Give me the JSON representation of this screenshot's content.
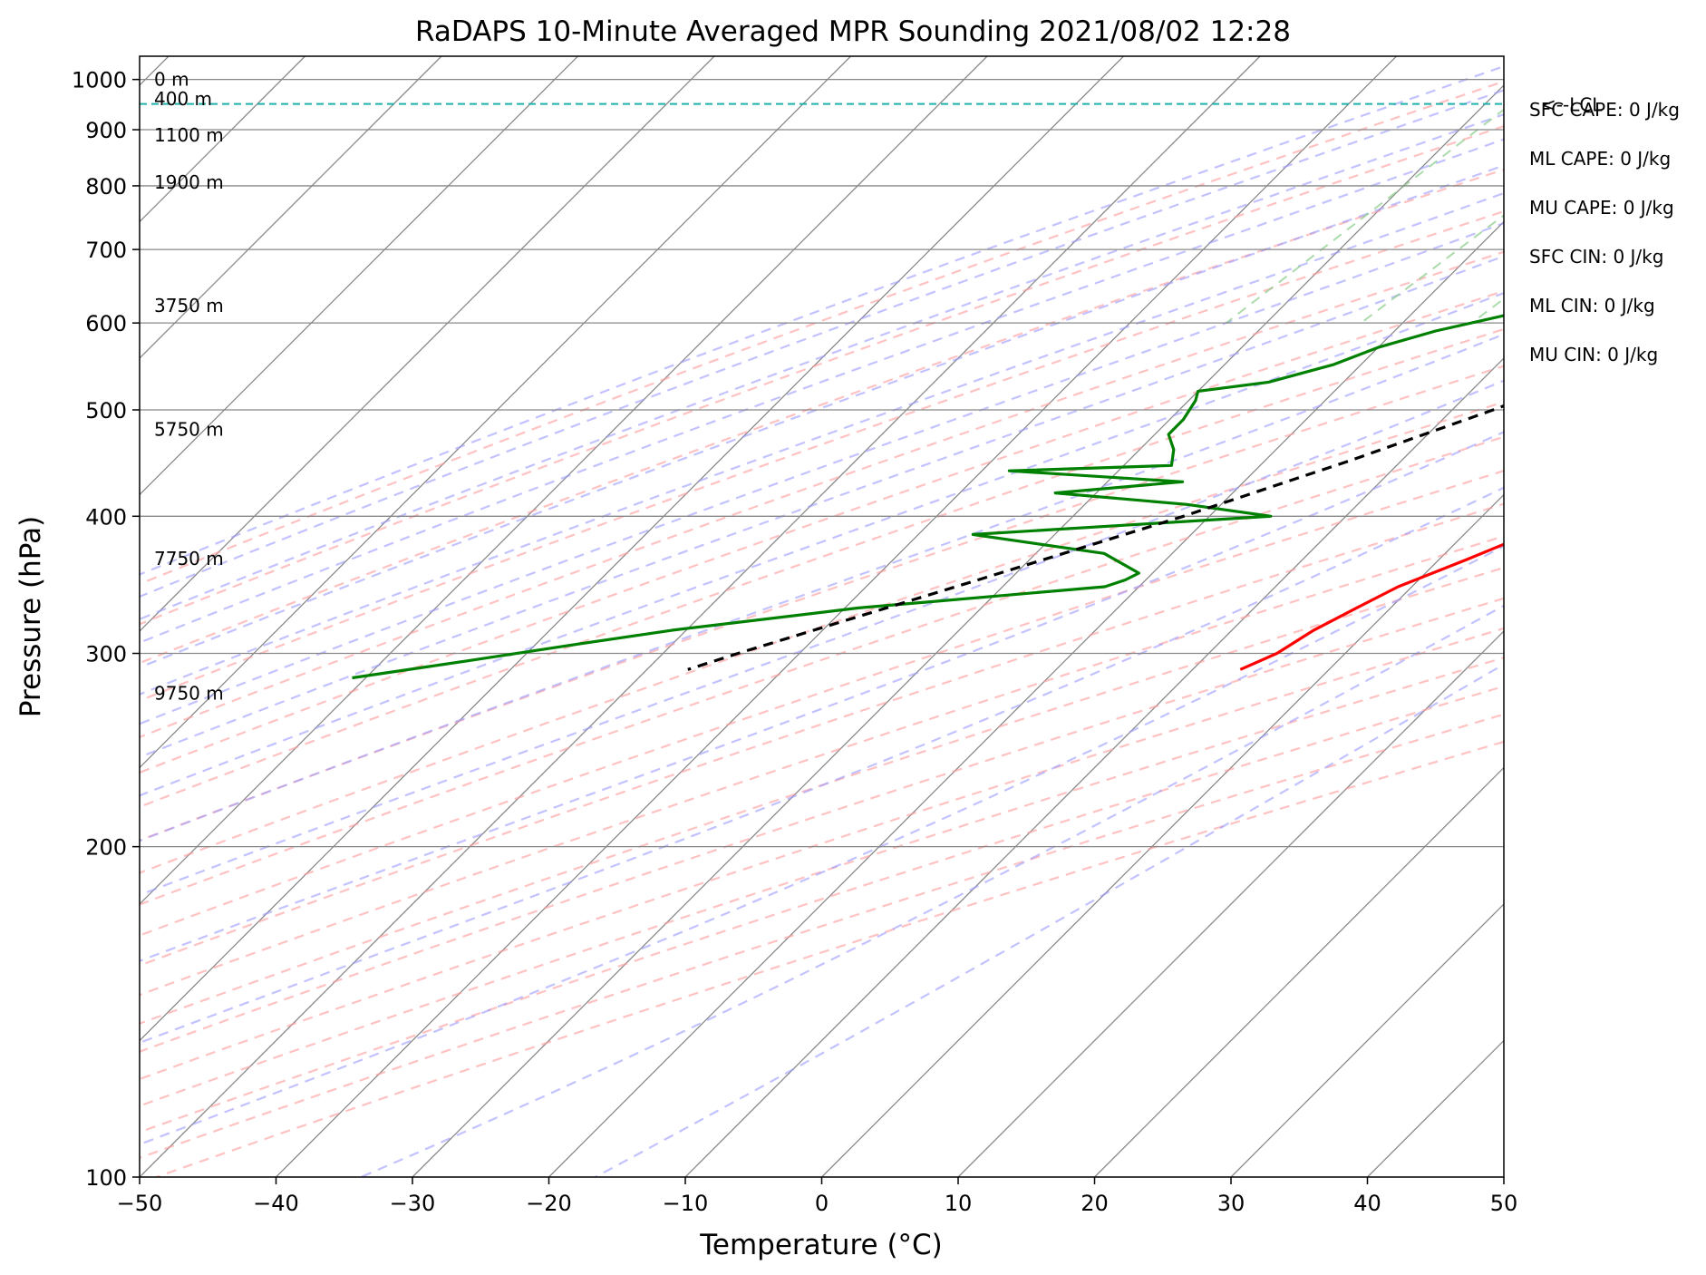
{
  "chart_data": {
    "type": "line",
    "title": "RaDAPS 10-Minute Averaged MPR Sounding 2021/08/02 12:28",
    "xlabel": "Temperature (°C)",
    "ylabel": "Pressure (hPa)",
    "xlim": [
      -50,
      50
    ],
    "ylim": [
      1050,
      100
    ],
    "y_scale": "log",
    "skew_t": true,
    "grid": true,
    "x_ticks": [
      -50,
      -40,
      -30,
      -20,
      -10,
      0,
      10,
      20,
      30,
      40,
      50
    ],
    "x_tick_labels": [
      "−50",
      "−40",
      "−30",
      "−20",
      "−10",
      "0",
      "10",
      "20",
      "30",
      "40",
      "50"
    ],
    "y_ticks": [
      100,
      200,
      300,
      400,
      500,
      600,
      700,
      800,
      900,
      1000
    ],
    "y_tick_labels": [
      "100",
      "200",
      "300",
      "400",
      "500",
      "600",
      "700",
      "800",
      "900",
      "1000"
    ],
    "series": [
      {
        "role": "temperature",
        "color": "#ff0000",
        "pressure": [
          988,
          970,
          955,
          940,
          925,
          900,
          880,
          865,
          850,
          835,
          800,
          770,
          745,
          720,
          700,
          680,
          660,
          640,
          620,
          600,
          580,
          560,
          530,
          500,
          470,
          450,
          430,
          410,
          395,
          380,
          365,
          345,
          330,
          315,
          300,
          290
        ],
        "temp": [
          23.5,
          21.2,
          20.5,
          21.2,
          21.5,
          20.8,
          21.2,
          22.5,
          24.5,
          26.0,
          24.5,
          24.0,
          23.5,
          22.5,
          20.0,
          18.5,
          17.0,
          15.8,
          15.0,
          15.0,
          14.0,
          14.0,
          12.5,
          10.0,
          7.5,
          6.0,
          5.0,
          4.5,
          5.0,
          4.0,
          2.0,
          -1.0,
          -2.5,
          -4.0,
          -5.0,
          -6.5
        ]
      },
      {
        "role": "dewpoint",
        "color": "#008000",
        "pressure": [
          985,
          980,
          970,
          960,
          945,
          930,
          910,
          895,
          875,
          865,
          855,
          845,
          835,
          820,
          800,
          780,
          760,
          740,
          720,
          700,
          680,
          660,
          640,
          610,
          590,
          570,
          550,
          530,
          520,
          510,
          490,
          475,
          460,
          445,
          440,
          430,
          420,
          410,
          400,
          385,
          370,
          355,
          350,
          345,
          330,
          315,
          305,
          295,
          285
        ],
        "temp": [
          18.0,
          13.0,
          10.0,
          8.0,
          6.5,
          6.0,
          4.0,
          -1.0,
          -6.0,
          -6.0,
          -6.5,
          -6.0,
          -6.5,
          -6.0,
          -6.0,
          -6.0,
          -6.0,
          -3.5,
          -2.0,
          -3.0,
          -6.0,
          -8.5,
          -11.0,
          -13.0,
          -17.0,
          -20.0,
          -22.0,
          -25.5,
          -30.0,
          -29.5,
          -29.0,
          -29.0,
          -27.5,
          -26.5,
          -38.0,
          -24.5,
          -33.0,
          -22.5,
          -15.5,
          -36.0,
          -25.0,
          -21.0,
          -21.5,
          -22.5,
          -39.0,
          -51.0,
          -57.5,
          -64.0,
          -71.0
        ]
      },
      {
        "role": "parcel_profile",
        "color": "#000000",
        "dashed": true,
        "pressure": [
          988,
          950,
          900,
          850,
          800,
          750,
          700,
          650,
          600,
          550,
          500,
          450,
          400,
          350,
          300,
          290
        ],
        "temp": [
          23.5,
          20.4,
          19.5,
          17.8,
          15.8,
          13.3,
          10.4,
          7.0,
          3.1,
          -1.5,
          -7.0,
          -13.7,
          -21.9,
          -32.3,
          -44.5,
          -47.0
        ]
      }
    ],
    "lcl": {
      "pressure": 950,
      "label": "<--LCL",
      "color": "#20b2aa"
    },
    "height_labels": [
      {
        "text": "9750 m",
        "pressure": 276
      },
      {
        "text": "7750 m",
        "pressure": 366
      },
      {
        "text": "5750 m",
        "pressure": 480
      },
      {
        "text": "3750 m",
        "pressure": 622
      },
      {
        "text": "1900 m",
        "pressure": 806
      },
      {
        "text": "1100 m",
        "pressure": 890
      },
      {
        "text": "400 m",
        "pressure": 960
      },
      {
        "text": "0 m",
        "pressure": 1000
      }
    ],
    "indices": [
      {
        "text": "SFC CAPE: 0 J/kg"
      },
      {
        "text": "ML CAPE: 0 J/kg"
      },
      {
        "text": "MU CAPE: 0 J/kg"
      },
      {
        "text": "SFC CIN: 0 J/kg"
      },
      {
        "text": "ML CIN: 0 J/kg"
      },
      {
        "text": "MU CIN: 0 J/kg"
      }
    ],
    "colors": {
      "dry_adiabats": "#ff9999",
      "moist_adiabats": "#9999ff",
      "mixing_lines": "#88cc88",
      "isotherms": "#888888",
      "isobars": "#888888"
    }
  }
}
